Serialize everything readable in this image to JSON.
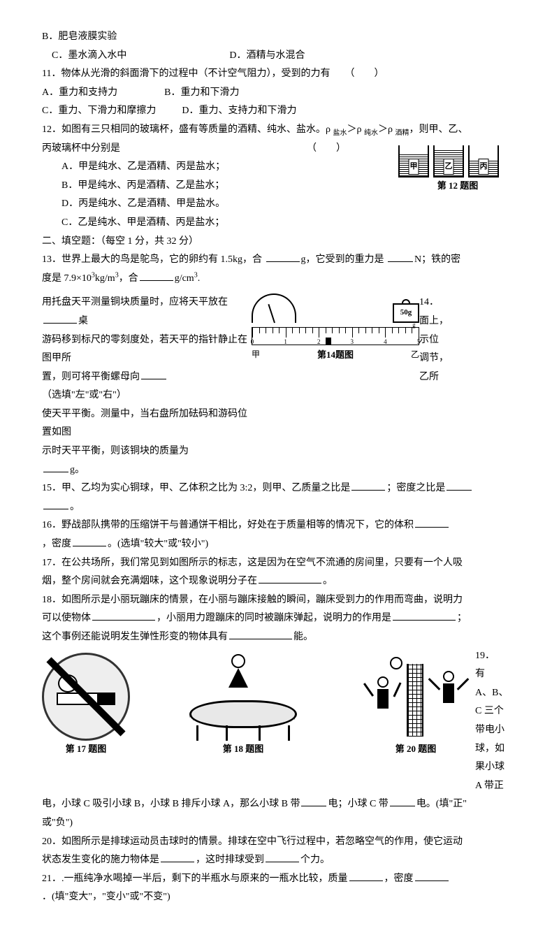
{
  "q10": {
    "optB": "B．肥皂液膜实验",
    "optC": "C．墨水滴入水中",
    "optD": "D．酒精与水混合"
  },
  "q11": {
    "stem": "11．物体从光滑的斜面滑下的过程中（不计空气阻力），受到的力有　　（　　）",
    "optA": "A．重力和支持力",
    "optB": "B．重力和下滑力",
    "optC": "C．重力、下滑力和摩擦力",
    "optD": "D．重力、支持力和下滑力"
  },
  "q12": {
    "stem_a": "12．如图有三只相同的玻璃杯，盛有等质量的酒精、纯水、盐水。ρ ",
    "sub1": "盐水",
    "mid1": "＞ρ ",
    "sub2": "纯水",
    "mid2": "＞ρ ",
    "sub3": "酒精",
    "stem_b": "，则甲、乙、",
    "stem_c": "丙玻璃杯中分别是",
    "paren": "（　　）",
    "optA": "A．甲是纯水、乙是酒精、丙是盐水；",
    "optB": "B．甲是纯水、丙是酒精、乙是盐水；",
    "optD": "D．丙是纯水、乙是酒精、甲是盐水。",
    "optC": "C．乙是纯水、甲是酒精、丙是盐水；",
    "cap": "第 12 题图",
    "labels": {
      "a": "甲",
      "b": "乙",
      "c": "丙"
    }
  },
  "sec2": "二、填空题：（每空 1 分，共 32 分）",
  "q13": {
    "a": "13．世界上最大的鸟是鸵鸟，它的卵约有 1.5kg，合 ",
    "b": "g，它受到的重力是 ",
    "c": "N；铁的密",
    "d": "度是 7.9×10",
    "sup": "3",
    "e": "kg/m",
    "sup2": "3",
    "f": "，合",
    "g": "g/cm",
    "sup3": "3",
    "h": "."
  },
  "q14": {
    "l1": "用托盘天平测量铜块质量时，应将天平放在",
    "l1b": "桌",
    "r1": "14．",
    "r1b": "面上，",
    "l2": "游码移到标尺的零刻度处，若天平的指针静止在图甲所",
    "r2": "示位",
    "l3a": "置，则可将平衡螺母向",
    "l3b": "（选填\"左\"或\"右\"）",
    "r3": "调节，",
    "l4": "使天平平衡。测量中，当右盘所加砝码和游码位置如图",
    "r4": "乙所",
    "l5": "示时天平平衡，则该铜块的质量为",
    "l6": "g。",
    "cap": "第14题图",
    "weight": "50g",
    "lbl_a": "甲",
    "lbl_b": "乙",
    "ticks": [
      "0",
      "1",
      "2",
      "3",
      "4",
      "5"
    ],
    "unit": "g"
  },
  "q15": {
    "a": "15．甲、乙均为实心铜球，甲、乙体积之比为 3:2，则甲、乙质量之比是",
    "b": "；密度之比是",
    "c": "。"
  },
  "q16": {
    "a": "16．野战部队携带的压缩饼干与普通饼干相比，好处在于质量相等的情况下，它的体积",
    "b": "，密度",
    "c": "。(选填\"较大\"或\"较小\")"
  },
  "q17": {
    "a": "17．在公共场所，我们常见到如图所示的标志，这是因为在空气不流通的房间里，只要有一个人吸",
    "b": "烟，整个房间就会充满烟味，这个现象说明分子在",
    "c": "。"
  },
  "q18": {
    "a": "18．如图所示是小丽玩蹦床的情景，在小丽与蹦床接触的瞬间，蹦床受到力的作用而弯曲，说明力",
    "b": "可以使物体",
    "c": "，小丽用力蹬蹦床的同时被蹦床弹起，说明力的作用是",
    "d": "；",
    "e": "这个事例还能说明发生弹性形变的物体具有",
    "f": "能。"
  },
  "q19": {
    "side": [
      "19．",
      "有",
      "A、B、",
      "C 三个",
      "带电小",
      "球，如",
      "果小球",
      "A 带正"
    ],
    "a": "电，小球 C 吸引小球 B，小球 B 排斥小球 A，那么小球 B 带",
    "b": "电；小球 C 带",
    "c": "电。(填\"正\"",
    "d": "或\"负\")"
  },
  "caps": {
    "c17": "第 17 题图",
    "c18": "第 18 题图",
    "c20": "第 20 题图"
  },
  "q20": {
    "a": "20．如图所示是排球运动员击球时的情景。排球在空中飞行过程中，若忽略空气的作用，使它运动",
    "b": "状态发生变化的施力物体是",
    "c": "，这时排球受到",
    "d": "个力。"
  },
  "q21": {
    "a": "21．.一瓶纯净水喝掉一半后，剩下的半瓶水与原来的一瓶水比较，质量",
    "b": "，密度",
    "c": "．(填\"变大\"，\"变小\"或\"不变\")"
  }
}
